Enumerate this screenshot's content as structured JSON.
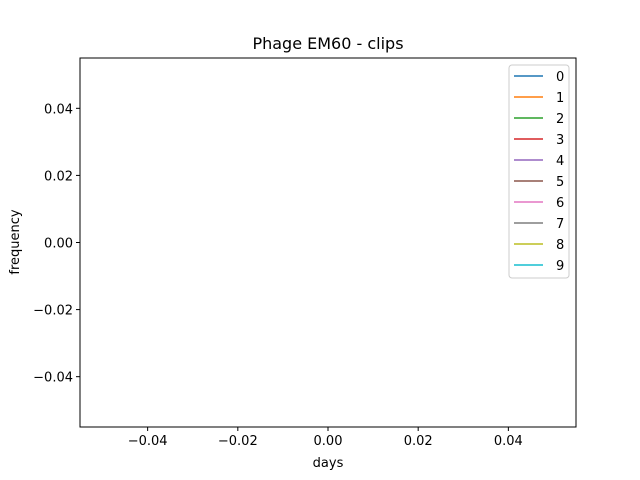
{
  "chart_data": {
    "type": "line",
    "title": "Phage EM60 - clips",
    "xlabel": "days",
    "ylabel": "frequency",
    "xlim": [
      -0.055,
      0.055
    ],
    "ylim": [
      -0.055,
      0.055
    ],
    "xticks": [
      -0.04,
      -0.02,
      0.0,
      0.02,
      0.04
    ],
    "xtick_labels": [
      "−0.04",
      "−0.02",
      "0.00",
      "0.02",
      "0.04"
    ],
    "yticks": [
      -0.04,
      -0.02,
      0.0,
      0.02,
      0.04
    ],
    "ytick_labels": [
      "−0.04",
      "−0.02",
      "0.00",
      "0.02",
      "0.04"
    ],
    "grid": false,
    "legend_position": "top-right",
    "series": [
      {
        "name": "0",
        "color": "#1f77b4",
        "x": [],
        "y": []
      },
      {
        "name": "1",
        "color": "#ff7f0e",
        "x": [],
        "y": []
      },
      {
        "name": "2",
        "color": "#2ca02c",
        "x": [],
        "y": []
      },
      {
        "name": "3",
        "color": "#d62728",
        "x": [],
        "y": []
      },
      {
        "name": "4",
        "color": "#9467bd",
        "x": [],
        "y": []
      },
      {
        "name": "5",
        "color": "#8c564b",
        "x": [],
        "y": []
      },
      {
        "name": "6",
        "color": "#e377c2",
        "x": [],
        "y": []
      },
      {
        "name": "7",
        "color": "#7f7f7f",
        "x": [],
        "y": []
      },
      {
        "name": "8",
        "color": "#bcbd22",
        "x": [],
        "y": []
      },
      {
        "name": "9",
        "color": "#17becf",
        "x": [],
        "y": []
      }
    ]
  }
}
